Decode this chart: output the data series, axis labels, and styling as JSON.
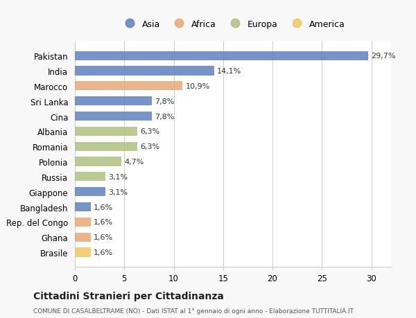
{
  "countries": [
    "Pakistan",
    "India",
    "Marocco",
    "Sri Lanka",
    "Cina",
    "Albania",
    "Romania",
    "Polonia",
    "Russia",
    "Giappone",
    "Bangladesh",
    "Rep. del Congo",
    "Ghana",
    "Brasile"
  ],
  "values": [
    29.7,
    14.1,
    10.9,
    7.8,
    7.8,
    6.3,
    6.3,
    4.7,
    3.1,
    3.1,
    1.6,
    1.6,
    1.6,
    1.6
  ],
  "labels": [
    "29,7%",
    "14,1%",
    "10,9%",
    "7,8%",
    "7,8%",
    "6,3%",
    "6,3%",
    "4,7%",
    "3,1%",
    "3,1%",
    "1,6%",
    "1,6%",
    "1,6%",
    "1,6%"
  ],
  "continents": [
    "Asia",
    "Asia",
    "Africa",
    "Asia",
    "Asia",
    "Europa",
    "Europa",
    "Europa",
    "Europa",
    "Asia",
    "Asia",
    "Africa",
    "Africa",
    "America"
  ],
  "colors": {
    "Asia": "#6080C0",
    "Africa": "#E8A878",
    "Europa": "#B0C080",
    "America": "#F0C860"
  },
  "legend_order": [
    "Asia",
    "Africa",
    "Europa",
    "America"
  ],
  "title": "Cittadini Stranieri per Cittadinanza",
  "subtitle": "COMUNE DI CASALBELTRAME (NO) - Dati ISTAT al 1° gennaio di ogni anno - Elaborazione TUTTITALIA.IT",
  "xlim": [
    0,
    32
  ],
  "xticks": [
    0,
    5,
    10,
    15,
    20,
    25,
    30
  ],
  "background_color": "#f8f8f8",
  "bar_background": "#ffffff"
}
